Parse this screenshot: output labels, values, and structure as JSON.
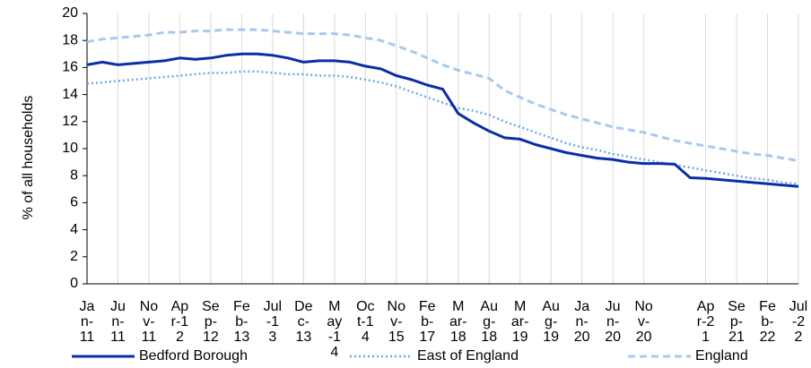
{
  "chart_data": {
    "type": "line",
    "y_axis_label": "% of all households",
    "categories": [
      "Jan-11",
      null,
      "Jun-11",
      null,
      "Nov-11",
      null,
      "Apr-12",
      null,
      "Sep-12",
      null,
      "Feb-13",
      null,
      "Jul-13",
      null,
      "Dec-13",
      null,
      "May-14",
      null,
      "Oct-14",
      null,
      "Nov-15",
      null,
      "Feb-17",
      null,
      "Mar-18",
      null,
      "Aug-18",
      null,
      "Mar-19",
      null,
      "Aug-19",
      null,
      "Jan-20",
      null,
      "Jun-20",
      null,
      "Nov-20",
      null,
      null,
      null,
      "Apr-21",
      null,
      "Sep-21",
      null,
      "Feb-22",
      null,
      "Jul-22"
    ],
    "series": [
      {
        "name": "Bedford Borough",
        "color": "#0a2ea8",
        "style": "solid",
        "values": [
          16.2,
          16.4,
          16.2,
          16.3,
          16.4,
          16.5,
          16.7,
          16.6,
          16.7,
          16.9,
          17.0,
          17.0,
          16.9,
          16.7,
          16.4,
          16.5,
          16.5,
          16.4,
          16.1,
          15.9,
          15.4,
          15.1,
          14.7,
          14.4,
          12.6,
          11.9,
          11.3,
          10.8,
          10.7,
          10.3,
          10.0,
          9.7,
          9.5,
          9.3,
          9.2,
          9.0,
          8.9,
          8.9,
          8.85,
          7.85,
          7.8,
          7.7,
          7.6,
          7.5,
          7.4,
          7.3,
          7.2
        ]
      },
      {
        "name": "East of England",
        "color": "#6fa8e8",
        "style": "dotted",
        "values": [
          14.8,
          14.9,
          15.0,
          15.1,
          15.2,
          15.3,
          15.4,
          15.5,
          15.6,
          15.6,
          15.7,
          15.7,
          15.6,
          15.5,
          15.5,
          15.4,
          15.4,
          15.3,
          15.1,
          14.9,
          14.6,
          14.2,
          13.8,
          13.4,
          13.0,
          12.8,
          12.5,
          12.0,
          11.6,
          11.2,
          10.8,
          10.4,
          10.1,
          9.9,
          9.6,
          9.4,
          9.2,
          9.0,
          8.8,
          8.6,
          8.4,
          8.2,
          8.0,
          7.8,
          7.7,
          7.5,
          7.4
        ]
      },
      {
        "name": "England",
        "color": "#a8c8f0",
        "style": "dashed",
        "values": [
          17.9,
          18.1,
          18.2,
          18.3,
          18.4,
          18.6,
          18.6,
          18.7,
          18.7,
          18.8,
          18.8,
          18.8,
          18.7,
          18.6,
          18.5,
          18.5,
          18.5,
          18.4,
          18.2,
          18.0,
          17.6,
          17.2,
          16.7,
          16.2,
          15.8,
          15.5,
          15.2,
          14.3,
          13.8,
          13.3,
          12.9,
          12.5,
          12.2,
          11.9,
          11.6,
          11.4,
          11.2,
          10.9,
          10.6,
          10.4,
          10.2,
          10.0,
          9.8,
          9.6,
          9.5,
          9.3,
          9.1
        ]
      }
    ],
    "ylim": [
      0,
      20
    ],
    "yticks": [
      0,
      2,
      4,
      6,
      8,
      10,
      12,
      14,
      16,
      18,
      20
    ],
    "grid": true,
    "legend": "bottom"
  }
}
